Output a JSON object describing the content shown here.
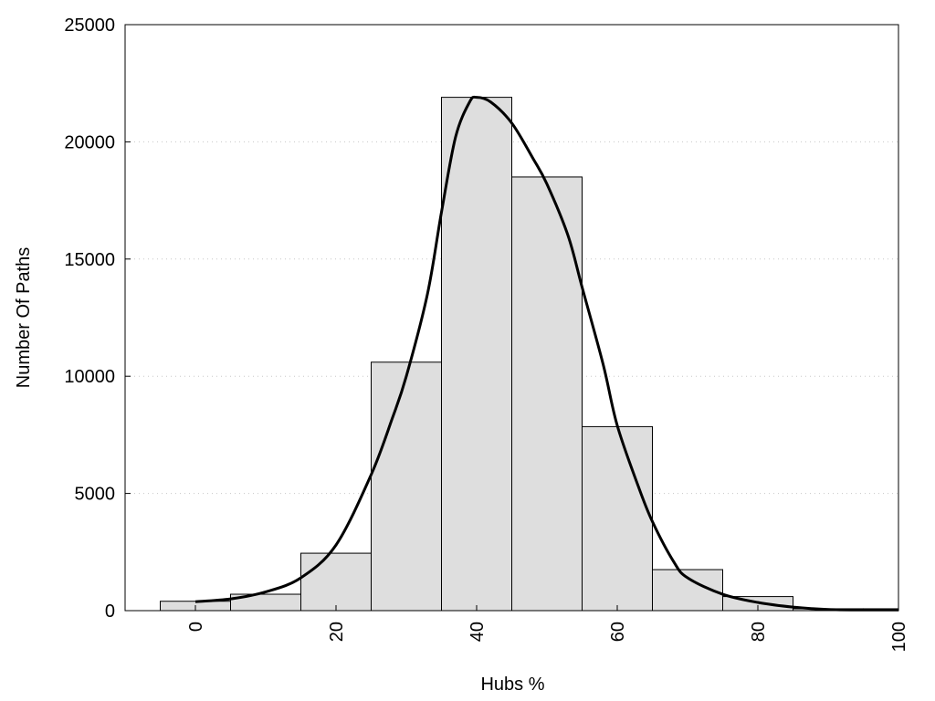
{
  "chart_data": {
    "type": "bar",
    "title": "",
    "xlabel": "Hubs %",
    "ylabel": "Number Of Paths",
    "xlim": [
      -10,
      100
    ],
    "ylim": [
      0,
      25000
    ],
    "x_ticks": [
      0,
      20,
      40,
      60,
      80,
      100
    ],
    "y_ticks": [
      0,
      5000,
      10000,
      15000,
      20000,
      25000
    ],
    "grid": "horizontal dotted",
    "legend": "none",
    "bar_width": 10,
    "categories": [
      0,
      10,
      20,
      30,
      40,
      50,
      60,
      70,
      80,
      90,
      100
    ],
    "values": [
      400,
      700,
      2450,
      10600,
      21900,
      18500,
      7850,
      1750,
      600,
      80,
      80
    ],
    "curve": {
      "x": [
        0,
        5,
        10,
        15,
        20,
        25,
        28,
        30,
        33,
        35,
        37,
        39,
        40,
        42,
        45,
        48,
        50,
        53,
        55,
        58,
        60,
        63,
        65,
        68,
        70,
        75,
        80,
        85,
        90,
        95,
        100
      ],
      "y": [
        380,
        500,
        800,
        1400,
        2800,
        5800,
        8200,
        10000,
        13500,
        17000,
        20200,
        21700,
        21900,
        21700,
        20800,
        19300,
        18200,
        16000,
        13800,
        10500,
        7900,
        5300,
        3800,
        2100,
        1400,
        700,
        350,
        150,
        50,
        30,
        30
      ]
    },
    "colors": {
      "bar_fill": "#dedede",
      "bar_stroke": "#000000",
      "curve": "#000000",
      "grid": "#c8c8c8",
      "frame": "#000000"
    }
  }
}
